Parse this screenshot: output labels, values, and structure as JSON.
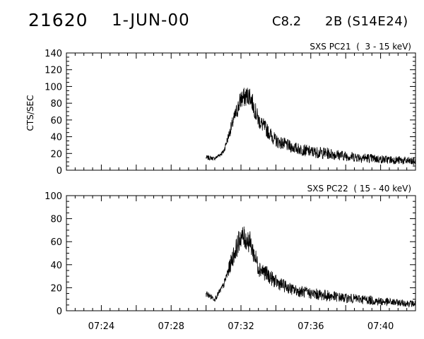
{
  "header": {
    "event_id": "21620",
    "date": "1-JUN-00",
    "flare_class": "C8.2",
    "optical": "2B (S14E24)"
  },
  "chart_data": [
    {
      "type": "line",
      "title": "SXS PC21  (  3 - 15 keV)",
      "ylabel": "CTS/SEC",
      "ylim": [
        0,
        140
      ],
      "yticks": [
        0,
        20,
        40,
        60,
        80,
        100,
        120,
        140
      ],
      "xlim": [
        "07:22",
        "07:42"
      ],
      "data_range": [
        "07:30",
        "07:42"
      ],
      "series": [
        {
          "x": [
            "07:30",
            "07:30.5",
            "07:31",
            "07:31.5",
            "07:32",
            "07:32.5",
            "07:33",
            "07:34",
            "07:35",
            "07:36",
            "07:37",
            "07:38",
            "07:39",
            "07:40",
            "07:41",
            "07:42"
          ],
          "values": [
            15,
            14,
            22,
            55,
            85,
            90,
            60,
            35,
            27,
            22,
            20,
            17,
            15,
            13,
            12,
            10
          ],
          "noise": [
            3,
            2,
            3,
            8,
            12,
            12,
            10,
            8,
            7,
            7,
            7,
            6,
            6,
            5,
            5,
            5
          ]
        }
      ]
    },
    {
      "type": "line",
      "title": "SXS PC22  ( 15 - 40 keV)",
      "ylabel": "",
      "ylim": [
        0,
        100
      ],
      "yticks": [
        0,
        20,
        40,
        60,
        80,
        100
      ],
      "xlim": [
        "07:22",
        "07:42"
      ],
      "data_range": [
        "07:30",
        "07:42"
      ],
      "series": [
        {
          "x": [
            "07:30",
            "07:30.5",
            "07:31",
            "07:31.5",
            "07:32",
            "07:32.5",
            "07:33",
            "07:34",
            "07:35",
            "07:36",
            "07:37",
            "07:38",
            "07:39",
            "07:40",
            "07:41",
            "07:42"
          ],
          "values": [
            15,
            10,
            22,
            45,
            65,
            60,
            38,
            25,
            18,
            15,
            13,
            11,
            10,
            8,
            7,
            6
          ],
          "noise": [
            3,
            2,
            3,
            8,
            10,
            10,
            8,
            6,
            5,
            5,
            5,
            4,
            4,
            4,
            3,
            3
          ]
        }
      ]
    }
  ],
  "x_tick_labels": [
    "07:24",
    "07:28",
    "07:32",
    "07:36",
    "07:40"
  ]
}
